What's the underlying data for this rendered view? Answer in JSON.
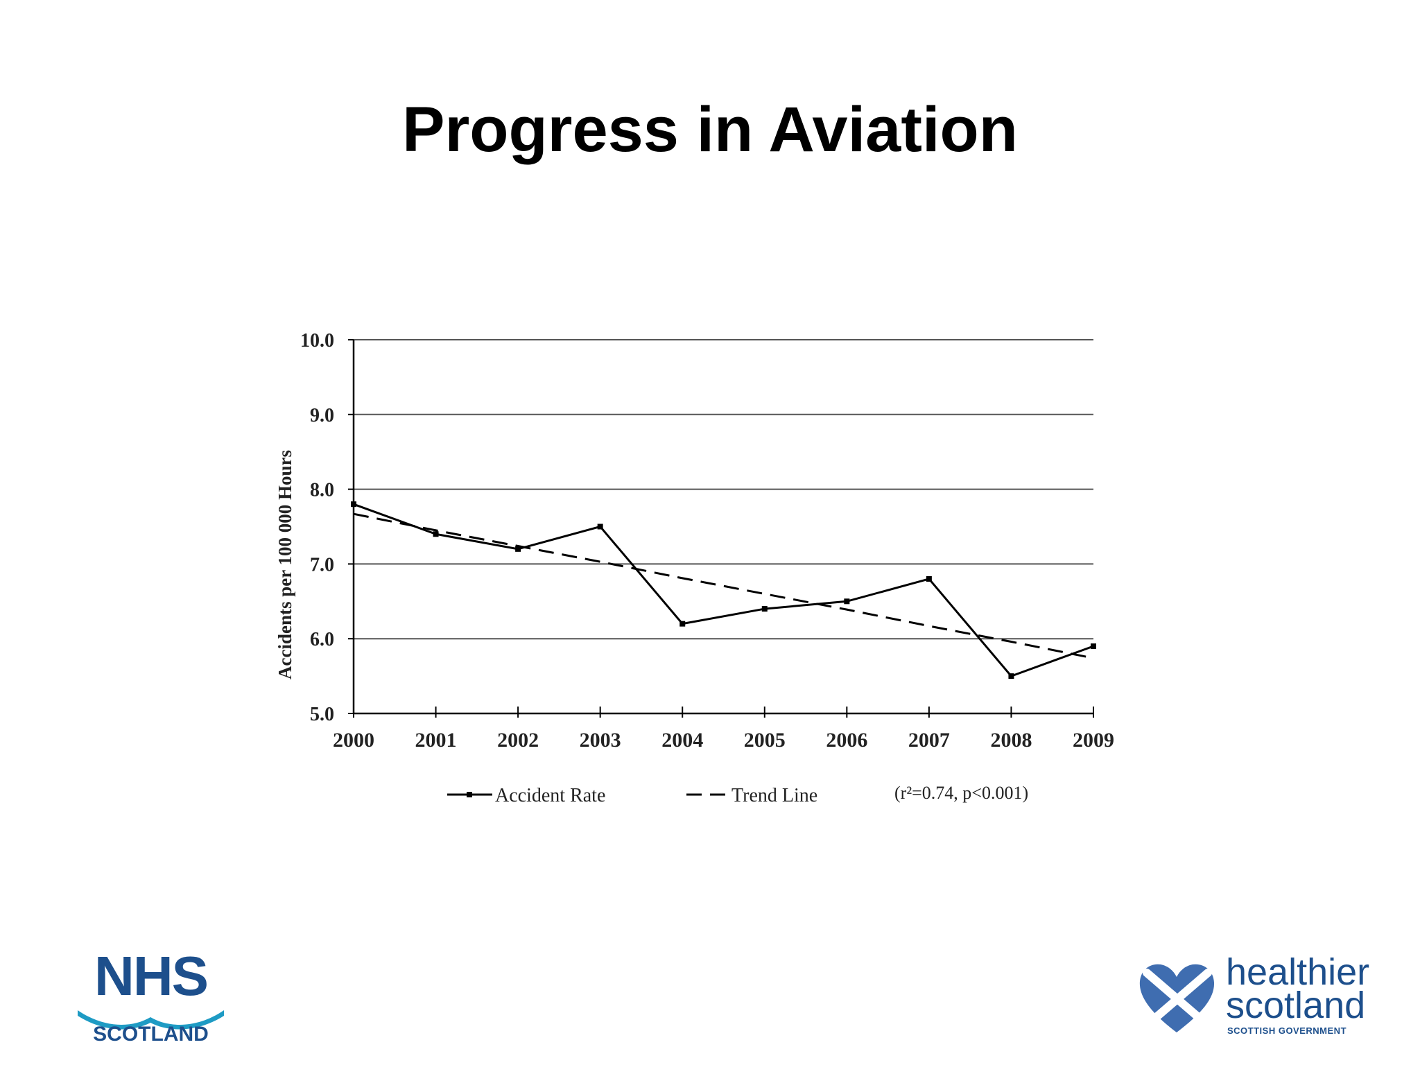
{
  "slide": {
    "title": "Progress in Aviation"
  },
  "chart_data": {
    "type": "line",
    "title": "",
    "xlabel": "",
    "ylabel": "Accidents per 100 000 Hours",
    "categories": [
      "2000",
      "2001",
      "2002",
      "2003",
      "2004",
      "2005",
      "2006",
      "2007",
      "2008",
      "2009"
    ],
    "y_ticks": [
      "5.0",
      "6.0",
      "7.0",
      "8.0",
      "9.0",
      "10.0"
    ],
    "ylim": [
      5.0,
      10.0
    ],
    "grid": true,
    "legend_position": "bottom",
    "series": [
      {
        "name": "Accident Rate",
        "style": "solid-with-markers",
        "color": "#000000",
        "values": [
          7.8,
          7.4,
          7.2,
          7.5,
          6.2,
          6.4,
          6.5,
          6.8,
          5.5,
          5.9
        ]
      },
      {
        "name": "Trend Line",
        "style": "dashed",
        "color": "#000000",
        "values": [
          7.67,
          7.45,
          7.24,
          7.03,
          6.81,
          6.6,
          6.39,
          6.17,
          5.96,
          5.74
        ]
      }
    ],
    "annotation": "(r²=0.74, p<0.001)"
  },
  "logos": {
    "nhs": {
      "word": "NHS",
      "sub": "SCOTLAND",
      "color": "#1d4f8c",
      "wave_color": "#1e9bc4"
    },
    "healthier_scotland": {
      "line1": "healthier",
      "line2": "scotland",
      "sub": "SCOTTISH GOVERNMENT",
      "color": "#1d4f8c"
    }
  }
}
